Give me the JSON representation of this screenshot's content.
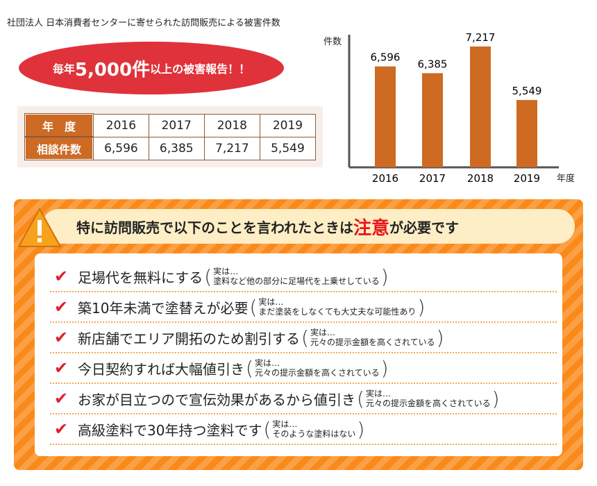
{
  "title": "社団法人 日本消費者センターに寄せられた訪問販売による被害件数",
  "callout": {
    "pre": "毎年",
    "big": "5,000件",
    "post": "以上の被害報告！！"
  },
  "table": {
    "row_headers": [
      "年　度",
      "相談件数"
    ],
    "years": [
      "2016",
      "2017",
      "2018",
      "2019"
    ],
    "counts": [
      "6,596",
      "6,385",
      "7,217",
      "5,549"
    ]
  },
  "chart_data": {
    "type": "bar",
    "categories": [
      "2016",
      "2017",
      "2018",
      "2019"
    ],
    "values": [
      6596,
      6385,
      7217,
      5549
    ],
    "data_labels": [
      "6,596",
      "6,385",
      "7,217",
      "5,549"
    ],
    "ylabel": "件数",
    "xlabel": "年度",
    "grid": false,
    "color": "#cf6a22"
  },
  "warning": {
    "pre": "特に訪問販売で以下のことを言われたときは",
    "em": "注意",
    "post": "が必要です"
  },
  "items": [
    {
      "claim": "足場代を無料にする",
      "note1": "実は…",
      "note2": "塗料など他の部分に足場代を上乗せしている"
    },
    {
      "claim": "築10年未満で塗替えが必要",
      "note1": "実は…",
      "note2": "まだ塗装をしなくても大丈夫な可能性あり"
    },
    {
      "claim": "新店舗でエリア開拓のため割引する",
      "note1": "実は…",
      "note2": "元々の提示金額を高くされている"
    },
    {
      "claim": "今日契約すれば大幅値引き",
      "note1": "実は…",
      "note2": "元々の提示金額を高くされている"
    },
    {
      "claim": "お家が目立つので宣伝効果があるから値引き",
      "note1": "実は…",
      "note2": "元々の提示金額を高くされている"
    },
    {
      "claim": "高級塗料で30年持つ塗料です",
      "note1": "実は…",
      "note2": "そのような塗料はない"
    }
  ]
}
